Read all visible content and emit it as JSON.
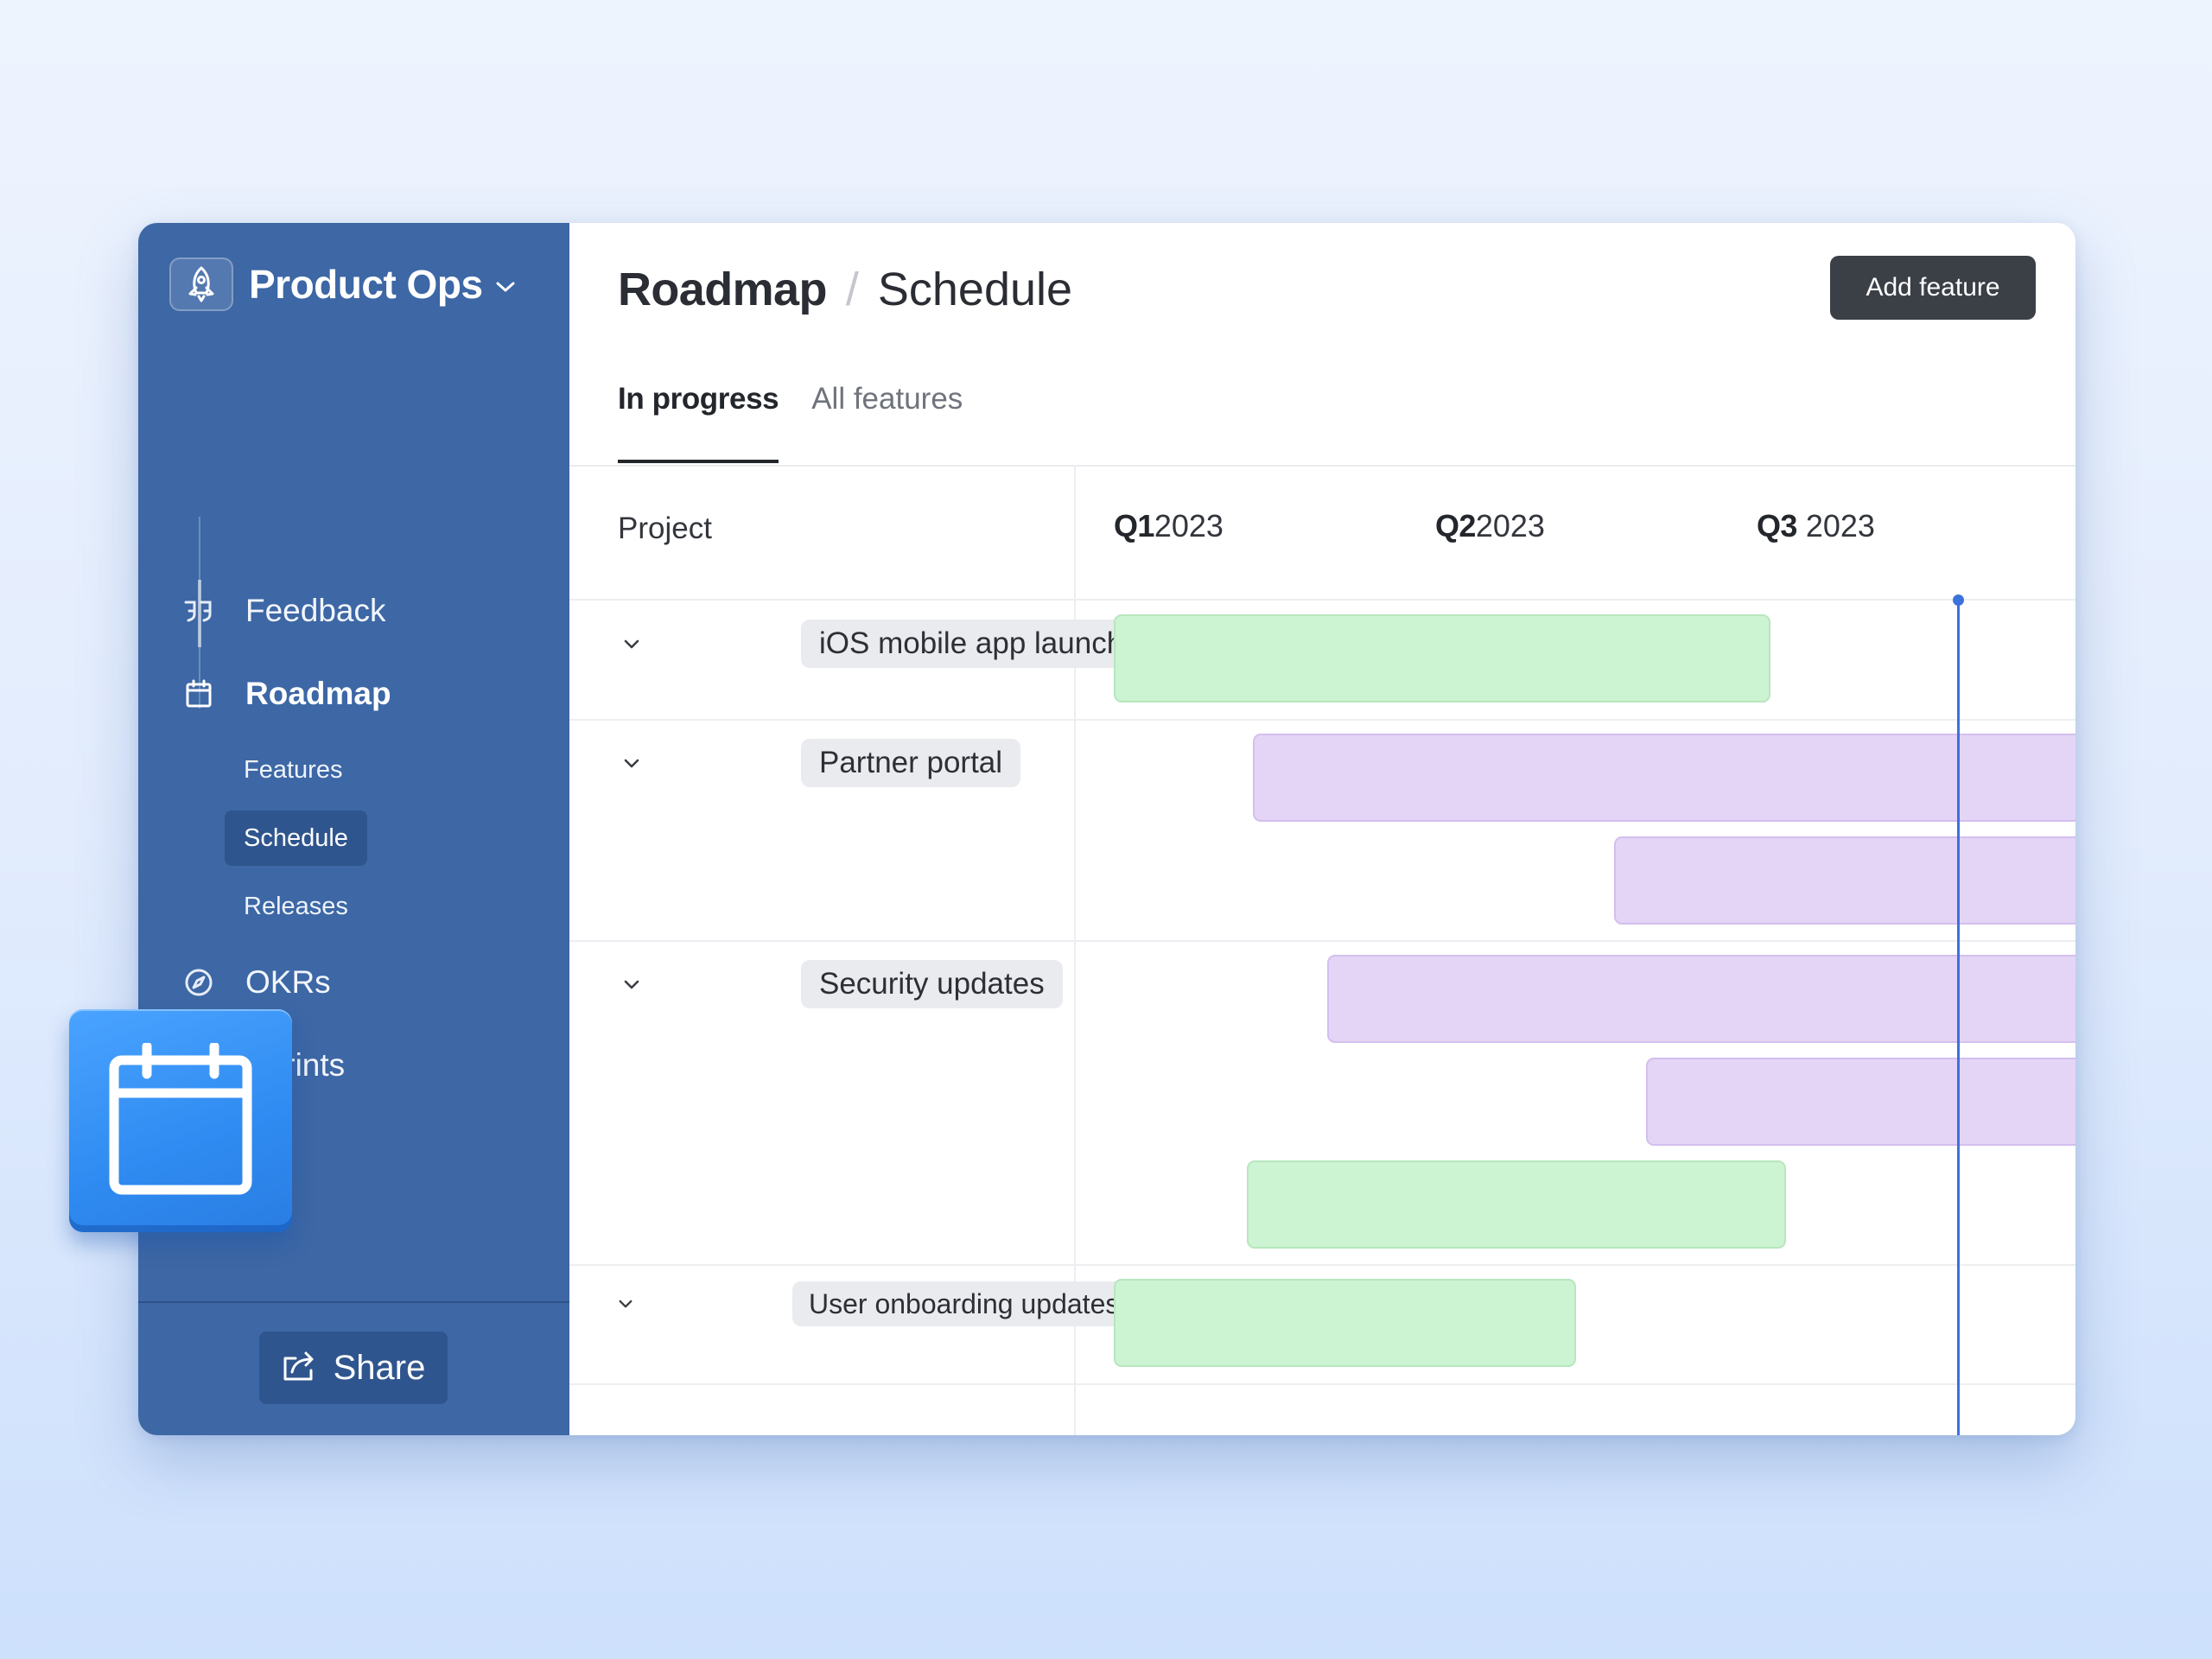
{
  "workspace": {
    "name": "Product Ops",
    "logo_icon": "rocket-icon"
  },
  "sidebar": {
    "items": [
      {
        "label": "Feedback",
        "icon": "quote-icon"
      },
      {
        "label": "Roadmap",
        "icon": "calendar-icon",
        "active": true,
        "children": [
          {
            "label": "Features"
          },
          {
            "label": "Schedule",
            "active": true
          },
          {
            "label": "Releases"
          }
        ]
      },
      {
        "label": "OKRs",
        "icon": "compass-icon"
      },
      {
        "label": "Sprints",
        "icon": "flag-icon"
      }
    ],
    "share_label": "Share"
  },
  "header": {
    "breadcrumb_root": "Roadmap",
    "breadcrumb_separator": "/",
    "breadcrumb_current": "Schedule",
    "add_button": "Add feature"
  },
  "tabs": [
    {
      "label": "In progress",
      "active": true
    },
    {
      "label": "All features",
      "active": false
    }
  ],
  "timeline": {
    "project_column_label": "Project",
    "quarters": [
      {
        "q": "Q1",
        "year": "2023"
      },
      {
        "q": "Q2",
        "year": "2023"
      },
      {
        "q": "Q3",
        "year": "2023"
      }
    ],
    "projects": [
      {
        "name": "iOS mobile app launch"
      },
      {
        "name": "Partner portal"
      },
      {
        "name": "Security updates"
      },
      {
        "name": "User onboarding updates"
      }
    ]
  },
  "colors": {
    "sidebar_bg": "#3d67a5",
    "bar_green": "#cdf4d2",
    "bar_purple": "#e4d5f6",
    "today_marker": "#3b72dc",
    "primary_button": "#3b3f46"
  }
}
